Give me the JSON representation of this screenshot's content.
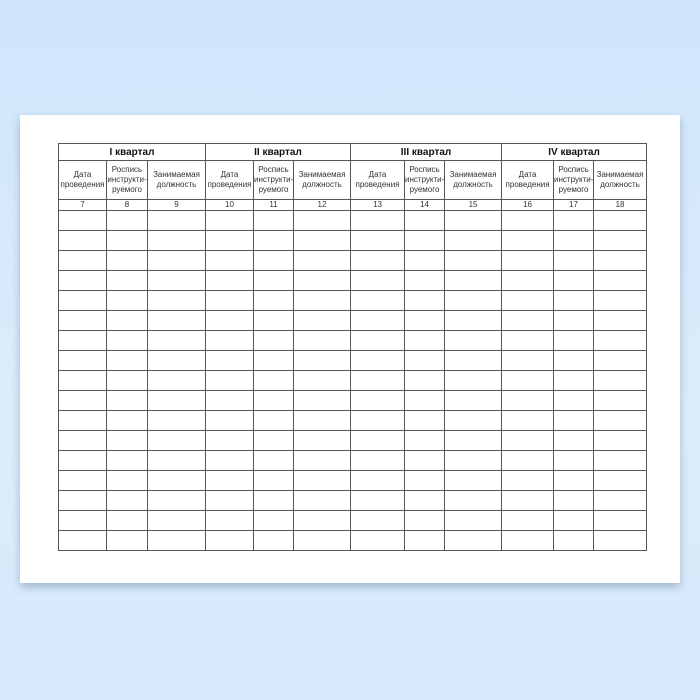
{
  "quarters": [
    {
      "title": "I квартал",
      "columns": [
        "Дата проведения",
        "Роспись инструкти-руемого",
        "Занимаемая должность"
      ],
      "numbers": [
        "7",
        "8",
        "9"
      ]
    },
    {
      "title": "II квартал",
      "columns": [
        "Дата проведения",
        "Роспись инструкти-руемого",
        "Занимаемая должность"
      ],
      "numbers": [
        "10",
        "11",
        "12"
      ]
    },
    {
      "title": "III квартал",
      "columns": [
        "Дата проведения",
        "Роспись инструкти-руемого",
        "Занимаемая должность"
      ],
      "numbers": [
        "13",
        "14",
        "15"
      ]
    },
    {
      "title": "IV квартал",
      "columns": [
        "Дата проведения",
        "Роспись инструкти-руемого",
        "Занимаемая должность"
      ],
      "numbers": [
        "16",
        "17",
        "18"
      ]
    }
  ],
  "colors": {
    "background": "#d6e9fb",
    "paper": "#ffffff",
    "grid": "#555555"
  }
}
